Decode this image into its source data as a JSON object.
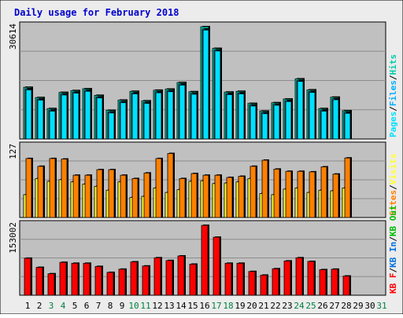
{
  "title": "Daily usage for February 2018",
  "colors": {
    "frame": "#ececec",
    "plot_bg": "#c0c0c0",
    "grid": "#8c8c8c",
    "title": "#0000cc",
    "pages": "#00e0ff",
    "files": "#00b0ff",
    "hits": "#00ccaa",
    "visits": "#ffff33",
    "sites": "#ff8000",
    "kb_out": "#00bb00",
    "kb_in": "#0070e0",
    "kb_f": "#ff0000",
    "weekend_label": "#008040",
    "day_label": "#000000"
  },
  "chart_data": [
    {
      "type": "bar",
      "name_labels": [
        "Pages",
        "Files",
        "Hits"
      ],
      "y_max_label": "30614",
      "ylim": [
        0,
        30614
      ],
      "categories": [
        "1",
        "2",
        "3",
        "4",
        "5",
        "6",
        "7",
        "8",
        "9",
        "10",
        "11",
        "12",
        "13",
        "14",
        "15",
        "16",
        "17",
        "18",
        "19",
        "20",
        "21",
        "22",
        "23",
        "24",
        "25",
        "26",
        "27",
        "28",
        "29",
        "30",
        "31"
      ],
      "series": [
        {
          "name": "Hits",
          "values": [
            14100,
            11300,
            8300,
            12700,
            13200,
            13700,
            11900,
            7800,
            10600,
            13000,
            10400,
            13300,
            13600,
            15400,
            12900,
            30614,
            24700,
            12800,
            13000,
            9700,
            7600,
            9900,
            10900,
            16400,
            13400,
            8300,
            11400,
            7700,
            0,
            0,
            0
          ]
        },
        {
          "name": "Files",
          "values": [
            13700,
            10900,
            7900,
            12300,
            12800,
            13300,
            11500,
            7400,
            10200,
            12600,
            10000,
            12900,
            13200,
            15000,
            12500,
            30000,
            24300,
            12400,
            12600,
            9300,
            7200,
            9500,
            10500,
            16000,
            13000,
            7900,
            11000,
            7300,
            0,
            0,
            0
          ]
        },
        {
          "name": "Pages",
          "values": [
            13400,
            10600,
            7600,
            12000,
            12500,
            13000,
            11200,
            7100,
            9900,
            12300,
            9700,
            12600,
            12900,
            14700,
            12200,
            29700,
            24000,
            12100,
            12300,
            9000,
            6900,
            9200,
            10200,
            15700,
            12700,
            7600,
            10700,
            7000,
            0,
            0,
            0
          ]
        }
      ]
    },
    {
      "type": "bar",
      "name_labels": [
        "Sites",
        "Visits"
      ],
      "y_max_label": "127",
      "ylim": [
        0,
        127
      ],
      "categories": [
        "1",
        "2",
        "3",
        "4",
        "5",
        "6",
        "7",
        "8",
        "9",
        "10",
        "11",
        "12",
        "13",
        "14",
        "15",
        "16",
        "17",
        "18",
        "19",
        "20",
        "21",
        "22",
        "23",
        "24",
        "25",
        "26",
        "27",
        "28",
        "29",
        "30",
        "31"
      ],
      "series": [
        {
          "name": "Visits",
          "values": [
            41,
            70,
            65,
            68,
            64,
            60,
            56,
            49,
            64,
            36,
            38,
            53,
            45,
            50,
            65,
            66,
            61,
            62,
            64,
            70,
            43,
            41,
            51,
            53,
            45,
            49,
            48,
            53,
            0,
            0,
            0
          ]
        },
        {
          "name": "Sites",
          "values": [
            106,
            92,
            106,
            105,
            76,
            76,
            86,
            86,
            76,
            70,
            80,
            106,
            115,
            70,
            79,
            76,
            76,
            72,
            74,
            92,
            103,
            87,
            83,
            83,
            82,
            91,
            78,
            107,
            0,
            0,
            0
          ]
        }
      ]
    },
    {
      "type": "bar",
      "name_labels": [
        "KB F",
        "KB In",
        "KB Out"
      ],
      "y_max_label": "153002",
      "ylim": [
        0,
        153002
      ],
      "categories": [
        "1",
        "2",
        "3",
        "4",
        "5",
        "6",
        "7",
        "8",
        "9",
        "10",
        "11",
        "12",
        "13",
        "14",
        "15",
        "16",
        "17",
        "18",
        "19",
        "20",
        "21",
        "22",
        "23",
        "24",
        "25",
        "26",
        "27",
        "28",
        "29",
        "30",
        "31"
      ],
      "weekend_days": [
        "3",
        "4",
        "10",
        "11",
        "17",
        "18",
        "24",
        "25",
        "31"
      ],
      "series": [
        {
          "name": "KB F",
          "values": [
            81000,
            61000,
            47000,
            72000,
            70000,
            70000,
            63000,
            50000,
            57000,
            73000,
            64000,
            82000,
            76000,
            86000,
            68000,
            153002,
            127000,
            70000,
            70000,
            52000,
            44000,
            58000,
            75000,
            82000,
            74000,
            56000,
            57000,
            42000,
            0,
            0,
            0
          ]
        }
      ]
    }
  ]
}
